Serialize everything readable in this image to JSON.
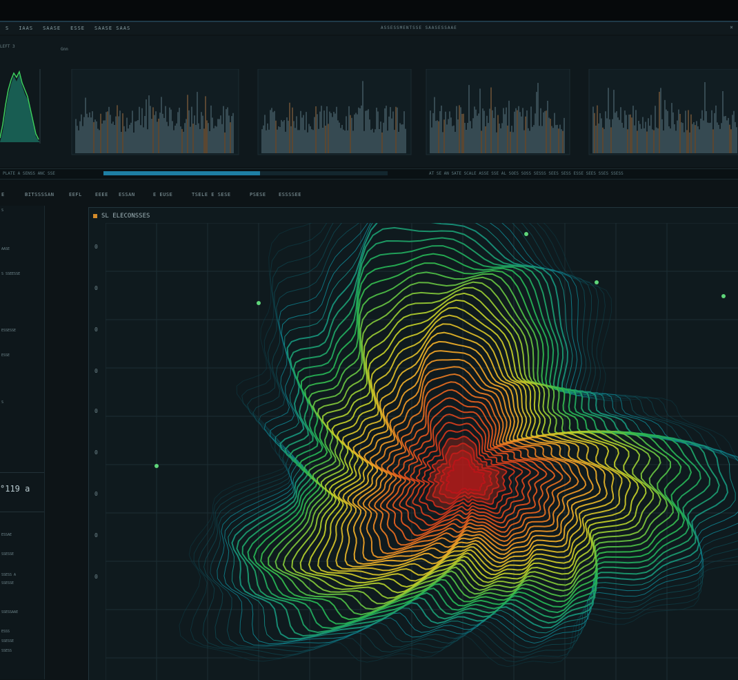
{
  "menubar": {
    "items": [
      "S",
      "IAAS",
      "SAASE",
      "ESSE",
      "SAASE SAAS"
    ],
    "window_title": "ASSESSMENTSSE SAASESSAAE",
    "window_control": "×"
  },
  "top_panel": {
    "label_left": "LEFT 3",
    "label_mid": "Gnn"
  },
  "progress": {
    "value": 0.55,
    "left_text": "PLATE A SENSS ANC SSE",
    "right_text": "AT SE AN SATE SCALE ASSE SSE AL SOES SOSS SESSS SEES SESS ESSE SEES SSES SSESS"
  },
  "tabs": [
    "E",
    "BITSSSSAN",
    "EEFL",
    "EEEE",
    "ESSAN",
    "E EUSE",
    "TSELE E SESE",
    "PSESE",
    "ESSSSEE"
  ],
  "sidebar": {
    "items": [
      "S",
      "AASE",
      "S  SSEESSE",
      "ESSESSE",
      "ESSE",
      "S",
      "ESSAE",
      "SSESSE",
      "SSESS A",
      "SSESSE",
      "SSESSAAE",
      "ESSS",
      "SSESSE",
      "SSESS"
    ],
    "reading": "°119 a"
  },
  "main": {
    "title": "SL ELECONSSES",
    "y_ticks": [
      "0",
      "0",
      "0",
      "0",
      "0",
      "0",
      "0",
      "0",
      "0"
    ]
  },
  "colors": {
    "background": "#0d1417",
    "accent": "#1e7fa4",
    "heat_low": "#0f7f8c",
    "heat_mid": "#e8d12c",
    "heat_high": "#d91c1c"
  }
}
